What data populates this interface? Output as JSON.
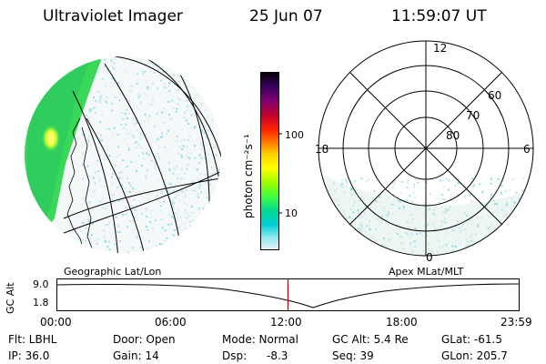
{
  "header": {
    "instrument": "Ultraviolet Imager",
    "date": "25 Jun 07",
    "time": "11:59:07 UT"
  },
  "colorbar": {
    "unit_label": "photon cm⁻²s⁻¹",
    "ticks": [
      "100",
      "10"
    ],
    "colors": [
      "#000000",
      "#2a0040",
      "#5a0070",
      "#8a0060",
      "#b00030",
      "#d00010",
      "#ff3000",
      "#ff8000",
      "#ffc000",
      "#ffff00",
      "#b0ff00",
      "#40ff40",
      "#00e080",
      "#00d8d8",
      "#80e8f0",
      "#e0f4f8"
    ]
  },
  "polar_plot": {
    "mlt_labels": [
      "12",
      "18",
      "6",
      "0"
    ],
    "lat_labels": [
      "60",
      "70",
      "80"
    ]
  },
  "panel_labels": {
    "left": "Geographic Lat/Lon",
    "right": "Apex MLat/MLT"
  },
  "altitude_strip": {
    "axis_label": "GC Alt",
    "y_ticks": [
      "9.0",
      "1.8"
    ],
    "x_ticks": [
      "00:00",
      "06:00",
      "12:00",
      "18:00",
      "23:59"
    ],
    "current_time_fraction": 0.5
  },
  "footer": {
    "flt": "Flt: LBHL",
    "ip": "IP: 36.0",
    "door": "Door: Open",
    "gain": "Gain: 14",
    "mode": "Mode: Normal",
    "dsp": "Dsp:",
    "dsp_value": "-8.3",
    "gc_alt": "GC Alt: 5.4 Re",
    "seq": "Seq: 39",
    "glat": "GLat: -61.5",
    "glon": "GLon: 205.7"
  }
}
